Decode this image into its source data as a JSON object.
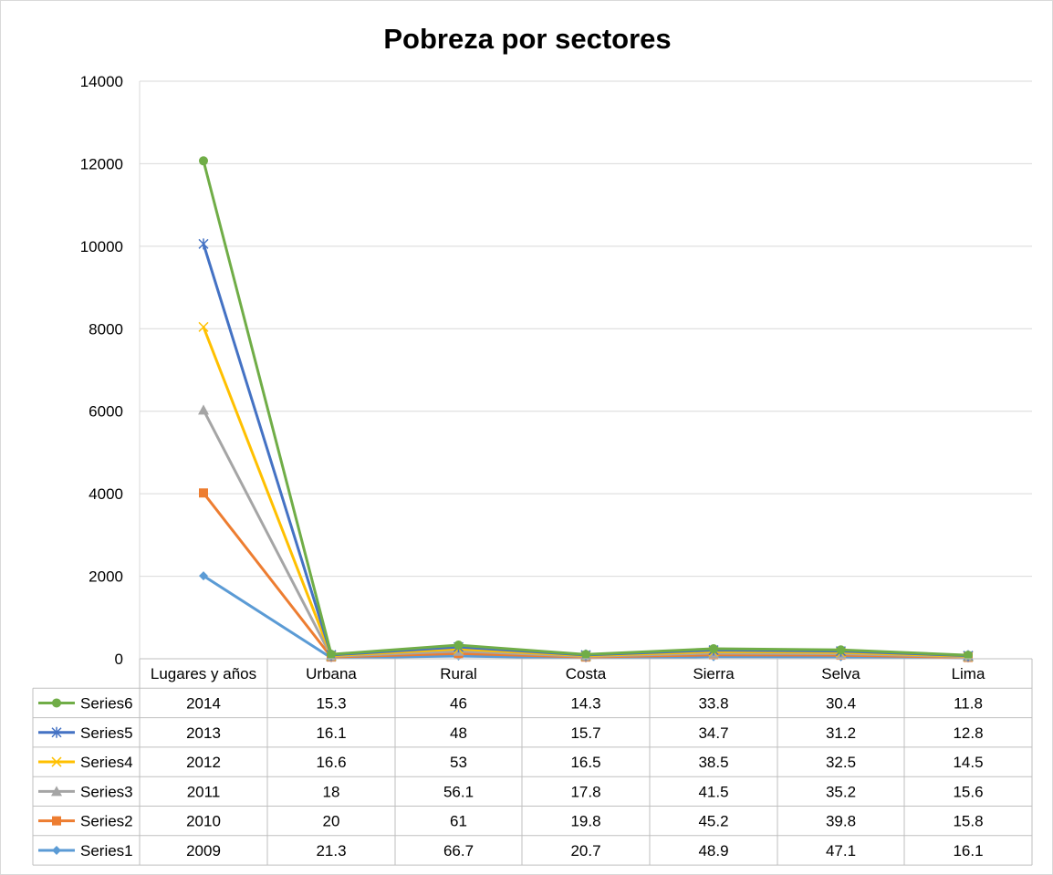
{
  "chart_data": {
    "type": "line",
    "title": "Pobreza por sectores",
    "categories": [
      "Lugares y años",
      "Urbana",
      "Rural",
      "Costa",
      "Sierra",
      "Selva",
      "Lima"
    ],
    "stacked": true,
    "ylim": [
      0,
      14000
    ],
    "yticks": [
      "0",
      "2000",
      "4000",
      "6000",
      "8000",
      "10000",
      "12000",
      "14000"
    ],
    "grid": true,
    "legend": "data-table",
    "series": [
      {
        "name": "Series6",
        "color": "#70ad47",
        "marker": "circle",
        "values": [
          2014,
          15.3,
          46,
          14.3,
          33.8,
          30.4,
          11.8
        ]
      },
      {
        "name": "Series5",
        "color": "#4472c4",
        "marker": "star",
        "values": [
          2013,
          16.1,
          48,
          15.7,
          34.7,
          31.2,
          12.8
        ]
      },
      {
        "name": "Series4",
        "color": "#ffc000",
        "marker": "x",
        "values": [
          2012,
          16.6,
          53,
          16.5,
          38.5,
          32.5,
          14.5
        ]
      },
      {
        "name": "Series3",
        "color": "#a5a5a5",
        "marker": "triangle",
        "values": [
          2011,
          18,
          56.1,
          17.8,
          41.5,
          35.2,
          15.6
        ]
      },
      {
        "name": "Series2",
        "color": "#ed7d31",
        "marker": "square",
        "values": [
          2010,
          20,
          61,
          19.8,
          45.2,
          39.8,
          15.8
        ]
      },
      {
        "name": "Series1",
        "color": "#5b9bd5",
        "marker": "diamond",
        "values": [
          2009,
          21.3,
          66.7,
          20.7,
          48.9,
          47.1,
          16.1
        ]
      }
    ]
  }
}
